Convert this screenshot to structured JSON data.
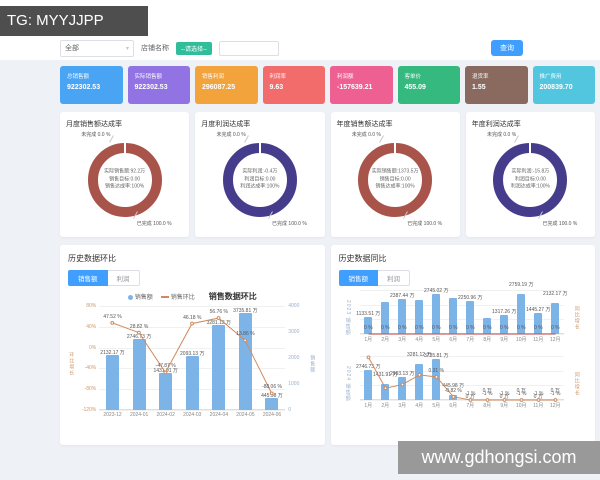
{
  "watermark_top": "TG: MYYJJPP",
  "watermark_bottom": "www.gdhongsi.com",
  "filter_bar": {
    "type_select_value": "全部",
    "shop_label": "店铺名称",
    "shop_placeholder": "--请选择--",
    "keyword_value": "",
    "search_button": "查询"
  },
  "stat_cards": [
    {
      "label": "总销售额",
      "value": "922302.53",
      "color": "#4aa4f4"
    },
    {
      "label": "实际销售额",
      "value": "922302.53",
      "color": "#9173e3"
    },
    {
      "label": "销售利润",
      "value": "296087.25",
      "color": "#f2a33c"
    },
    {
      "label": "利润率",
      "value": "9.63",
      "color": "#f36c6c"
    },
    {
      "label": "利润额",
      "value": "-157639.21",
      "color": "#ee5f92"
    },
    {
      "label": "客单价",
      "value": "455.09",
      "color": "#35b97e"
    },
    {
      "label": "退货率",
      "value": "1.55",
      "color": "#8a6a5e"
    },
    {
      "label": "推广费用",
      "value": "200839.70",
      "color": "#52c6df"
    }
  ],
  "donut_section": {
    "panels": [
      {
        "title": "月度销售额达成率",
        "color": "#a8544a",
        "unfinished": "未完成 0.0 %",
        "finished": "已完成 100.0 %",
        "center": [
          "实际销售额:92.2万",
          "销售目标:0.00",
          "销售达成率:100%"
        ]
      },
      {
        "title": "月度利润达成率",
        "color": "#463c8c",
        "unfinished": "未完成 0.0 %",
        "finished": "已完成 100.0 %",
        "center": [
          "实际利润:-0.4万",
          "利润目标:0.00",
          "利润达成率:100%"
        ]
      },
      {
        "title": "年度销售额达成率",
        "color": "#a8544a",
        "unfinished": "未完成 0.0 %",
        "finished": "已完成 100.0 %",
        "center": [
          "实际销售额:1373.5万",
          "销售目标:0.00",
          "销售达成率:100%"
        ]
      },
      {
        "title": "年度利润达成率",
        "color": "#463c8c",
        "unfinished": "未完成 0.0 %",
        "finished": "已完成 100.0 %",
        "center": [
          "实际利润:-15.8万",
          "利润目标:0.00",
          "利润达成率:100%"
        ]
      }
    ]
  },
  "history_left": {
    "heading": "历史数据环比",
    "tabs": [
      "销售额",
      "利润"
    ],
    "active_tab": "销售额"
  },
  "history_right": {
    "heading": "历史数据同比",
    "tabs": [
      "销售额",
      "利润"
    ],
    "active_tab": "销售额"
  },
  "chart_data": [
    {
      "id": "mom-combo",
      "type": "bar+line",
      "title": "销售数据环比",
      "legend": [
        {
          "name": "销售额",
          "color": "#7db4e8",
          "marker": "dot"
        },
        {
          "name": "销售环比",
          "color": "#d08a5e",
          "marker": "line"
        }
      ],
      "categories": [
        "2023-12",
        "2024-01",
        "2024-02",
        "2024-03",
        "2024-04",
        "2024-05",
        "2024-06"
      ],
      "bar_series": {
        "name": "销售额",
        "unit": "万",
        "color": "#7db4e8",
        "max": 4000,
        "values": [
          2132.17,
          2746.73,
          1431.91,
          2093.13,
          3281.12,
          3735.81,
          445.98
        ],
        "labels": [
          "2132.17 万",
          "2746.73 万",
          "1431.91 万",
          "2093.13 万",
          "3281.12 万",
          "3735.81 万",
          "445.98 万"
        ]
      },
      "line_series": {
        "name": "销售环比",
        "unit": "%",
        "color": "#d08a5e",
        "min": -120,
        "max": 80,
        "values": [
          47.52,
          28.82,
          -47.87,
          46.18,
          56.76,
          13.86,
          -88.06
        ],
        "labels": [
          "47.52 %",
          "28.82 %",
          "-47.87 %",
          "46.18 %",
          "56.76 %",
          "13.86 %",
          "-88.06 %"
        ]
      },
      "y_left": {
        "label": "环比增长",
        "color": "#cf9a6e",
        "ticks": [
          "80%",
          "40%",
          "0%",
          "-40%",
          "-80%",
          "-120%"
        ]
      },
      "y_right": {
        "label": "销售额",
        "color": "#9ab0c9",
        "ticks": [
          "4000",
          "3000",
          "2000",
          "1000",
          "0"
        ]
      }
    },
    {
      "id": "yoy-2023",
      "type": "bar+line",
      "categories": [
        "1月",
        "2月",
        "3月",
        "4月",
        "5月",
        "6月",
        "7月",
        "8月",
        "9月",
        "10月",
        "11月",
        "12月"
      ],
      "bar_series": {
        "name": "2023销售额",
        "unit": "万",
        "color": "#7db4e8",
        "max": 3000,
        "values": [
          1133.51,
          2150,
          2387.44,
          2300,
          2745.02,
          2430,
          2250.96,
          1120,
          1317.26,
          2759.19,
          1445.27,
          2132.17
        ],
        "labels": [
          "1133.51 万",
          "",
          "2387.44 万",
          "",
          "2745.02 万",
          "",
          "2250.96 万",
          "",
          "1317.26 万",
          "2759.19 万",
          "1445.27 万",
          "2132.17 万"
        ]
      },
      "line_series": {
        "name": "同比",
        "color": "#c0504d",
        "min": 0,
        "max": 5,
        "values": [
          0,
          0,
          0,
          0,
          0,
          0,
          0,
          0,
          0,
          0,
          0,
          0
        ],
        "labels": [
          "0 %",
          "0 %",
          "0 %",
          "0 %",
          "0 %",
          "0 %",
          "0 %",
          "0 %",
          "0 %",
          "0 %",
          "0 %",
          "0 %"
        ]
      },
      "y_left": {
        "label": "2023 销售额",
        "color": "#9ab0c9",
        "ticks": []
      },
      "y_right": {
        "label": "同比增长",
        "color": "#cf9a6e",
        "ticks": []
      }
    },
    {
      "id": "yoy-2024",
      "type": "bar+line",
      "categories": [
        "1月",
        "2月",
        "3月",
        "4月",
        "5月",
        "6月",
        "7月",
        "8月",
        "9月",
        "10月",
        "11月",
        "12月"
      ],
      "bar_series": {
        "name": "2024销售额",
        "unit": "万",
        "color": "#7db4e8",
        "max": 4000,
        "values": [
          2746.73,
          1431.91,
          2093.13,
          3281.12,
          3735.81,
          445.98,
          0,
          0,
          0,
          0,
          0,
          0
        ],
        "labels": [
          "2746.73 万",
          "1431.91 万",
          "2093.13 万",
          "3281.12 万",
          "3735.81 万",
          "445.98 万",
          "0 万",
          "0 万",
          "0 万",
          "0 万",
          "0 万",
          "0 万"
        ]
      },
      "line_series": {
        "name": "同比",
        "color": "#d08a5e",
        "min": -1,
        "max": 1.5,
        "values": [
          1.42,
          -0.33,
          -0.12,
          0.43,
          0.31,
          -0.82,
          -1,
          -1,
          -1,
          -1,
          -1,
          -1
        ],
        "labels": [
          "",
          "",
          "",
          "",
          "0.31 %",
          "-0.82 %",
          "-1 %",
          "-1 %",
          "-1 %",
          "-1 %",
          "-1 %",
          "-1 %"
        ]
      },
      "y_left": {
        "label": "2024 销售额",
        "color": "#9ab0c9",
        "ticks": []
      },
      "y_right": {
        "label": "同比增长",
        "color": "#cf9a6e",
        "ticks": []
      }
    }
  ]
}
